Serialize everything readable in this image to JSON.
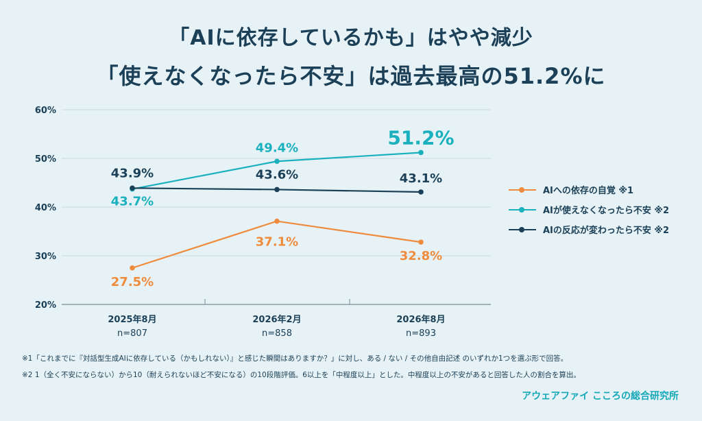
{
  "title": {
    "line1": "「AIに依存しているかも」はやや減少",
    "line2": "「使えなくなったら不安」は過去最高の51.2%に"
  },
  "chart_data": {
    "type": "line",
    "title": "「AIに依存しているかも」はやや減少 / 「使えなくなったら不安」は過去最高の51.2%に",
    "categories": [
      "2025年8月",
      "2026年2月",
      "2026年8月"
    ],
    "sample_sizes": [
      "n=807",
      "n=858",
      "n=893"
    ],
    "ylim": [
      20,
      60
    ],
    "yticks": [
      20,
      30,
      40,
      50,
      60
    ],
    "ytick_labels": [
      "20%",
      "30%",
      "40%",
      "50%",
      "60%"
    ],
    "grid": true,
    "legend_position": "right",
    "series": [
      {
        "name": "AIへの依存の自覚 ※1",
        "color": "#ef8b3d",
        "values": [
          27.5,
          37.1,
          32.8
        ],
        "labels": [
          "27.5%",
          "37.1%",
          "32.8%"
        ]
      },
      {
        "name": "AIが使えなくなったら不安 ※2",
        "color": "#1ab0bd",
        "values": [
          43.7,
          49.4,
          51.2
        ],
        "labels": [
          "43.7%",
          "49.4%",
          "51.2%"
        ]
      },
      {
        "name": "AIの反応が変わったら不安 ※2",
        "color": "#1b4057",
        "values": [
          43.9,
          43.6,
          43.1
        ],
        "labels": [
          "43.9%",
          "43.6%",
          "43.1%"
        ]
      }
    ]
  },
  "footnotes": [
    "※1「これまでに『対話型生成AIに依存している（かもしれない）』と感じた瞬間はありますか？」に対し、ある / ない / その他自由記述 のいずれか1つを選ぶ形で回答。",
    "※2 1（全く不安にならない）から10（耐えられないほど不安になる）の10段階評価。6以上を「中程度以上」とした。中程度以上の不安があると回答した人の割合を算出。"
  ],
  "brand": "アウェアファイ こころの総合研究所"
}
